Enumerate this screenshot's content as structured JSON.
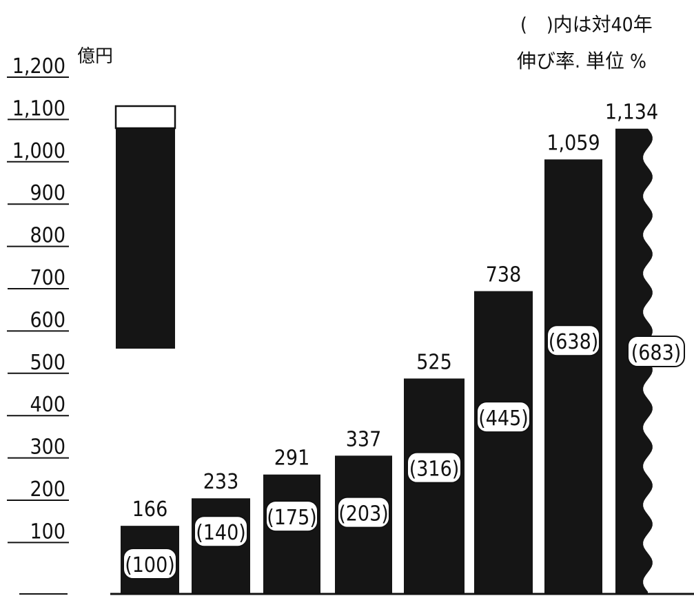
{
  "chart_data": {
    "type": "bar",
    "unit_label": "億円",
    "note_line1": "(　)内は対40年",
    "note_line2": "伸び率. 単位 %",
    "yticks": [
      "1,200",
      "1,100",
      "1,000",
      "900",
      "800",
      "700",
      "600",
      "500",
      "400",
      "300",
      "200",
      "100"
    ],
    "ylim": [
      0,
      1200
    ],
    "legend_values": {
      "white_top": 1150,
      "black_top": 1100,
      "bottom": 600
    },
    "values": [
      166,
      233,
      291,
      337,
      525,
      738,
      1059,
      1134
    ],
    "value_labels": [
      "166",
      "233",
      "291",
      "337",
      "525",
      "738",
      "1,059",
      "1,134"
    ],
    "ratio_labels": [
      "(100)",
      "(140)",
      "(175)",
      "(203)",
      "(316)",
      "(445)",
      "(638)",
      "(683)"
    ],
    "last_bar_estimate": true,
    "colors": {
      "bar": "#151515",
      "bg": "#ffffff",
      "text": "#111111"
    }
  }
}
